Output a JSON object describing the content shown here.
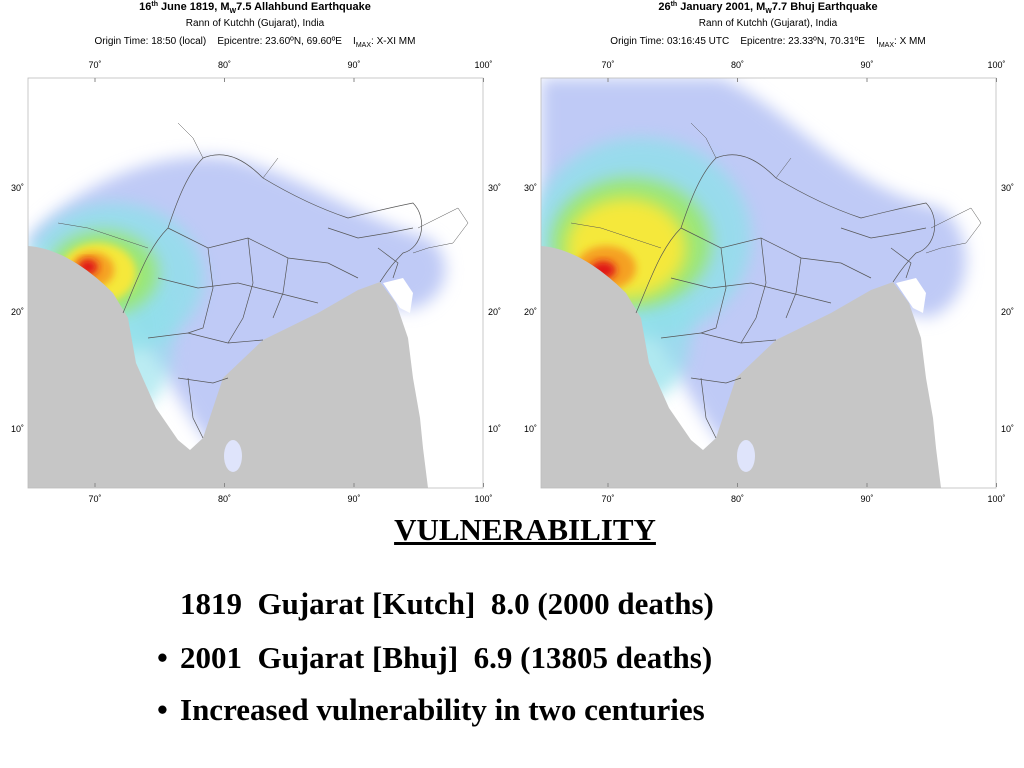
{
  "maps": [
    {
      "title": [
        "16",
        "th",
        " June 1819, M",
        "W",
        "7.5 Allahbund Earthquake"
      ],
      "location": "Rann of Kutchh (Gujarat), India",
      "origin": [
        "Origin Time: 18:50 (local)    Epicentre: 23.60ºN, 69.60ºE    I",
        "MAX",
        ": X-XI MM"
      ],
      "lon_ticks": [
        "70˚",
        "80˚",
        "90˚",
        "100˚"
      ],
      "lat_ticks": [
        "30˚",
        "20˚",
        "10˚"
      ]
    },
    {
      "title": [
        "26",
        "th",
        " January 2001, M",
        "W",
        "7.7 Bhuj Earthquake"
      ],
      "location": "Rann of Kutchh (Gujarat), India",
      "origin": [
        "Origin Time: 03:16:45 UTC    Epicentre: 23.33ºN, 70.31ºE    I",
        "MAX",
        ": X MM"
      ],
      "lon_ticks": [
        "70˚",
        "80˚",
        "90˚",
        "100˚"
      ],
      "lat_ticks": [
        "30˚",
        "20˚",
        "10˚"
      ]
    }
  ],
  "heading": "VULNERABILITY",
  "items": [
    {
      "text": "1819  Gujarat [Kutch]  8.0 (2000 deaths)"
    },
    {
      "bullet": "•",
      "text": "2001  Gujarat [Bhuj]  6.9 (13805 deaths)"
    },
    {
      "bullet": "•",
      "text": "Increased vulnerability in two centuries"
    }
  ]
}
